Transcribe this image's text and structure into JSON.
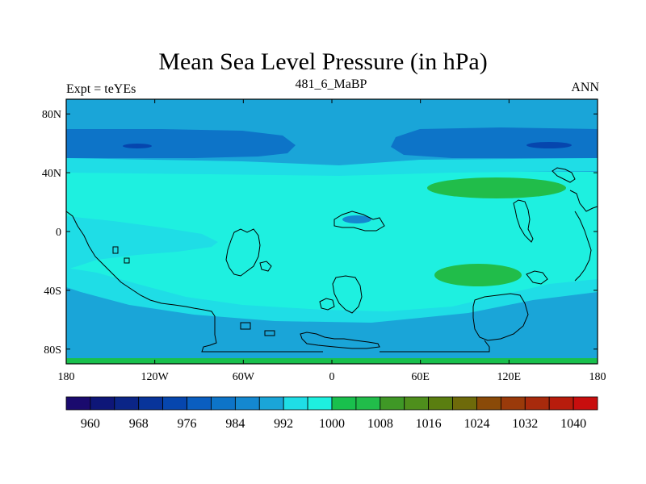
{
  "chart_data": {
    "type": "heatmap",
    "title": "Mean Sea Level Pressure (in hPa)",
    "subtitle": "481_6_MaBP",
    "left_subtitle": "Expt = teYEs",
    "right_subtitle": "ANN",
    "x_ticks": [
      {
        "value": -180,
        "label": "180"
      },
      {
        "value": -120,
        "label": "120W"
      },
      {
        "value": -60,
        "label": "60W"
      },
      {
        "value": 0,
        "label": "0"
      },
      {
        "value": 60,
        "label": "60E"
      },
      {
        "value": 120,
        "label": "120E"
      },
      {
        "value": 180,
        "label": "180"
      }
    ],
    "y_ticks": [
      {
        "value": 80,
        "label": "80N"
      },
      {
        "value": 40,
        "label": "40N"
      },
      {
        "value": 0,
        "label": "0"
      },
      {
        "value": -40,
        "label": "40S"
      },
      {
        "value": -80,
        "label": "80S"
      }
    ],
    "xlim": [
      -180,
      180
    ],
    "ylim": [
      -90,
      90
    ],
    "colorbar": {
      "labels": [
        {
          "value": 960,
          "label": "960"
        },
        {
          "value": 968,
          "label": "968"
        },
        {
          "value": 976,
          "label": "976"
        },
        {
          "value": 984,
          "label": "984"
        },
        {
          "value": 992,
          "label": "992"
        },
        {
          "value": 1000,
          "label": "1000"
        },
        {
          "value": 1008,
          "label": "1008"
        },
        {
          "value": 1016,
          "label": "1016"
        },
        {
          "value": 1024,
          "label": "1024"
        },
        {
          "value": 1032,
          "label": "1032"
        },
        {
          "value": 1040,
          "label": "1040"
        }
      ],
      "levels": [
        956,
        960,
        964,
        968,
        972,
        976,
        980,
        984,
        988,
        992,
        996,
        1000,
        1004,
        1008,
        1012,
        1016,
        1020,
        1024,
        1028,
        1032,
        1036,
        1040,
        1044
      ],
      "colors": [
        "#1a0a6e",
        "#0e1678",
        "#0b2587",
        "#08349a",
        "#0646ae",
        "#0a5ec0",
        "#0d74c8",
        "#1488d0",
        "#1aa5d8",
        "#1fdde6",
        "#1ef0e0",
        "#19c04d",
        "#21bd4a",
        "#3f9826",
        "#4e8f1c",
        "#5a7e10",
        "#6e6a0a",
        "#8a4a08",
        "#9a3a0a",
        "#a82a0c",
        "#b81c0c",
        "#c80e0e"
      ],
      "panel_colors": [
        "#0e1678",
        "#08349a",
        "#0a5ec0",
        "#1488d0",
        "#1fdde6",
        "#21bd4a",
        "#5a7e10",
        "#8a4a08",
        "#b81c0c"
      ]
    },
    "fields": [
      {
        "name": "background",
        "value": 996
      },
      {
        "name": "northern_band",
        "value": 988
      },
      {
        "name": "southern_band",
        "value": 988
      },
      {
        "name": "north_low_west",
        "value": 980
      },
      {
        "name": "north_low_east",
        "value": 980
      },
      {
        "name": "north_core_west",
        "value": 972
      },
      {
        "name": "north_core_east",
        "value": 972
      },
      {
        "name": "antarctic_edge",
        "value": 1000
      },
      {
        "name": "subtropical_high_north",
        "value": 1004
      },
      {
        "name": "subtropical_high_south",
        "value": 1004
      },
      {
        "name": "african_low",
        "value": 984
      }
    ]
  }
}
